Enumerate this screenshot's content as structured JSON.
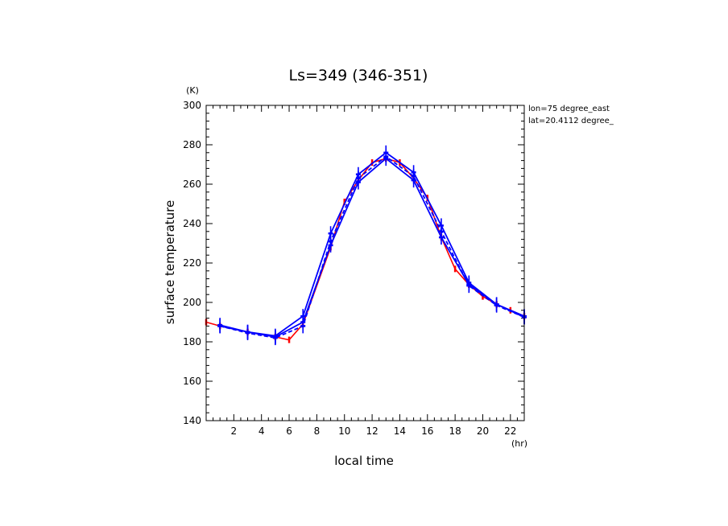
{
  "chart_data": {
    "type": "line",
    "title": "Ls=349 (346-351)",
    "xlabel": "local time",
    "ylabel": "surface temperature",
    "xunit": "(hr)",
    "yunit": "(K)",
    "xlim": [
      0,
      23
    ],
    "ylim": [
      140,
      300
    ],
    "x_ticks": [
      2,
      4,
      6,
      8,
      10,
      12,
      14,
      16,
      18,
      20,
      22
    ],
    "y_ticks": [
      140,
      160,
      180,
      200,
      220,
      240,
      260,
      280,
      300
    ],
    "grid": false,
    "annotations": [
      "lon=75 degree_east",
      "lat=20.4112 degree_"
    ],
    "colors": {
      "red": "#ff0000",
      "blue": "#0000ff"
    },
    "series": [
      {
        "color": "#ff0000",
        "x": [
          0,
          1,
          3,
          5,
          6,
          7,
          9,
          10,
          11,
          12,
          13,
          14,
          15,
          16,
          17,
          18,
          19,
          20,
          21,
          22,
          23
        ],
        "y": [
          190,
          188,
          185,
          182.5,
          181,
          189,
          228,
          251,
          262,
          271,
          273,
          271,
          263,
          253,
          233,
          217,
          209,
          203,
          199,
          196,
          193
        ]
      },
      {
        "color": "#0000ff",
        "x": [
          1,
          3,
          5,
          7,
          9,
          11,
          13,
          15,
          17,
          19,
          21,
          23
        ],
        "y": [
          188,
          185,
          182.5,
          190,
          229,
          261,
          273,
          262,
          233,
          209,
          199,
          192.5
        ]
      },
      {
        "color": "#0000ff",
        "x": [
          1,
          3,
          5,
          7,
          9,
          11,
          13,
          15,
          17,
          19,
          21,
          23
        ],
        "y": [
          188.5,
          185,
          183,
          193,
          235,
          265,
          276,
          266,
          239,
          210,
          199,
          193
        ]
      },
      {
        "color": "#0000ff",
        "x": [
          1,
          3,
          5,
          7,
          9,
          11,
          13,
          15,
          17,
          19,
          21,
          23
        ],
        "y": [
          188,
          184.5,
          182,
          188,
          231,
          263,
          274,
          264,
          236,
          208.5,
          198.5,
          192.5
        ]
      }
    ]
  }
}
